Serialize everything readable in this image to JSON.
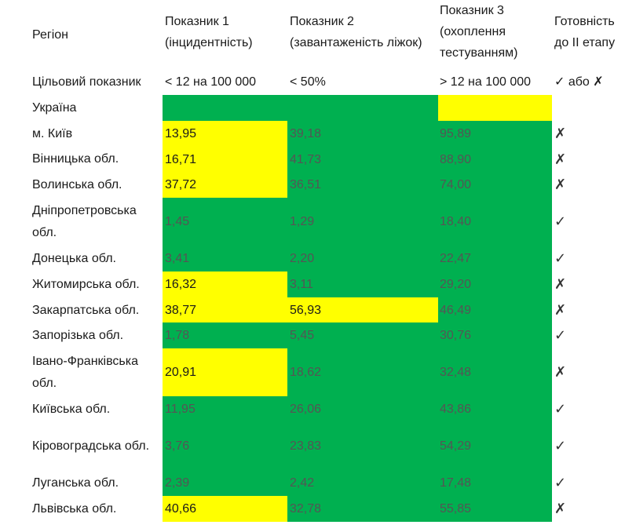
{
  "header": {
    "region": "Регіон",
    "ind1": "Показник 1 (інцидентність)",
    "ind2": "Показник 2 (завантаженість ліжок)",
    "ind3": "Показник 3 (охоплення тестуванням)",
    "ready": "Готовність до ІІ етапу"
  },
  "target": {
    "label": "Цільовий показник",
    "ind1": "< 12 на 100 000",
    "ind2": "< 50%",
    "ind3": "> 12 на 100 000",
    "ready": "✓ або ✗"
  },
  "colors": {
    "green": "#00b050",
    "yellow": "#ffff00"
  },
  "rows": [
    {
      "region": "Україна",
      "v1": "",
      "v2": "",
      "v3": "",
      "ready": "",
      "f1": "green",
      "f2": "green",
      "f3": "yellow"
    },
    {
      "region": "м. Київ",
      "v1": "13,95",
      "v2": "39,18",
      "v3": "95,89",
      "ready": "✗",
      "f1": "yellow",
      "f2": "green",
      "f3": "green"
    },
    {
      "region": "Вінницька обл.",
      "v1": "16,71",
      "v2": "41,73",
      "v3": "88,90",
      "ready": "✗",
      "f1": "yellow",
      "f2": "green",
      "f3": "green"
    },
    {
      "region": "Волинська обл.",
      "v1": "37,72",
      "v2": "36,51",
      "v3": "74,00",
      "ready": "✗",
      "f1": "yellow",
      "f2": "green",
      "f3": "green"
    },
    {
      "region": "Дніпропетровська обл.",
      "v1": "1,45",
      "v2": "1,29",
      "v3": "18,40",
      "ready": "✓",
      "f1": "green",
      "f2": "green",
      "f3": "green"
    },
    {
      "region": "Донецька обл.",
      "v1": "3,41",
      "v2": "2,20",
      "v3": "22,47",
      "ready": "✓",
      "f1": "green",
      "f2": "green",
      "f3": "green"
    },
    {
      "region": "Житомирська обл.",
      "v1": "16,32",
      "v2": "3,11",
      "v3": "29,20",
      "ready": "✗",
      "f1": "yellow",
      "f2": "green",
      "f3": "green"
    },
    {
      "region": "Закарпатська обл.",
      "v1": "38,77",
      "v2": "56,93",
      "v3": "46,49",
      "ready": "✗",
      "f1": "yellow",
      "f2": "yellow",
      "f3": "green"
    },
    {
      "region": "Запорізька обл.",
      "v1": "1,78",
      "v2": "5,45",
      "v3": "30,76",
      "ready": "✓",
      "f1": "green",
      "f2": "green",
      "f3": "green"
    },
    {
      "region": "Івано-Франківська обл.",
      "v1": "20,91",
      "v2": "18,62",
      "v3": "32,48",
      "ready": "✗",
      "f1": "yellow",
      "f2": "green",
      "f3": "green"
    },
    {
      "region": "Київська обл.",
      "v1": "11,95",
      "v2": "26,06",
      "v3": "43,86",
      "ready": "✓",
      "f1": "green",
      "f2": "green",
      "f3": "green"
    },
    {
      "region": "Кіровоградська обл.",
      "v1": "3,76",
      "v2": "23,83",
      "v3": "54,29",
      "ready": "✓",
      "f1": "green",
      "f2": "green",
      "f3": "green"
    },
    {
      "region": "Луганська обл.",
      "v1": "2,39",
      "v2": "2,42",
      "v3": "17,48",
      "ready": "✓",
      "f1": "green",
      "f2": "green",
      "f3": "green"
    },
    {
      "region": "Львівська обл.",
      "v1": "40,66",
      "v2": "32,78",
      "v3": "55,85",
      "ready": "✗",
      "f1": "yellow",
      "f2": "green",
      "f3": "green"
    }
  ]
}
